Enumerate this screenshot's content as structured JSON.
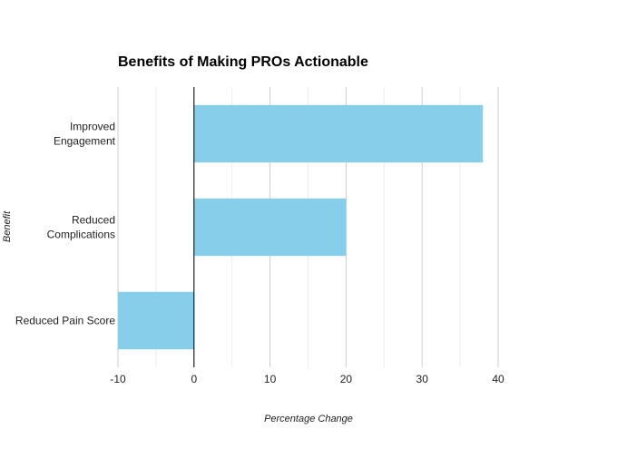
{
  "chart_data": {
    "type": "bar",
    "orientation": "horizontal",
    "title": "Benefits of Making PROs Actionable",
    "xlabel": "Percentage Change",
    "ylabel": "Benefit",
    "categories": [
      [
        "Improved",
        "Engagement"
      ],
      [
        "Reduced",
        "Complications"
      ],
      [
        "Reduced Pain Score"
      ]
    ],
    "values": [
      38,
      20,
      -10
    ],
    "xlim": [
      -10,
      40
    ],
    "xticks": [
      "-10",
      "0",
      "10",
      "20",
      "30",
      "40"
    ],
    "bar_color": "#87CEEB",
    "grid": true
  }
}
